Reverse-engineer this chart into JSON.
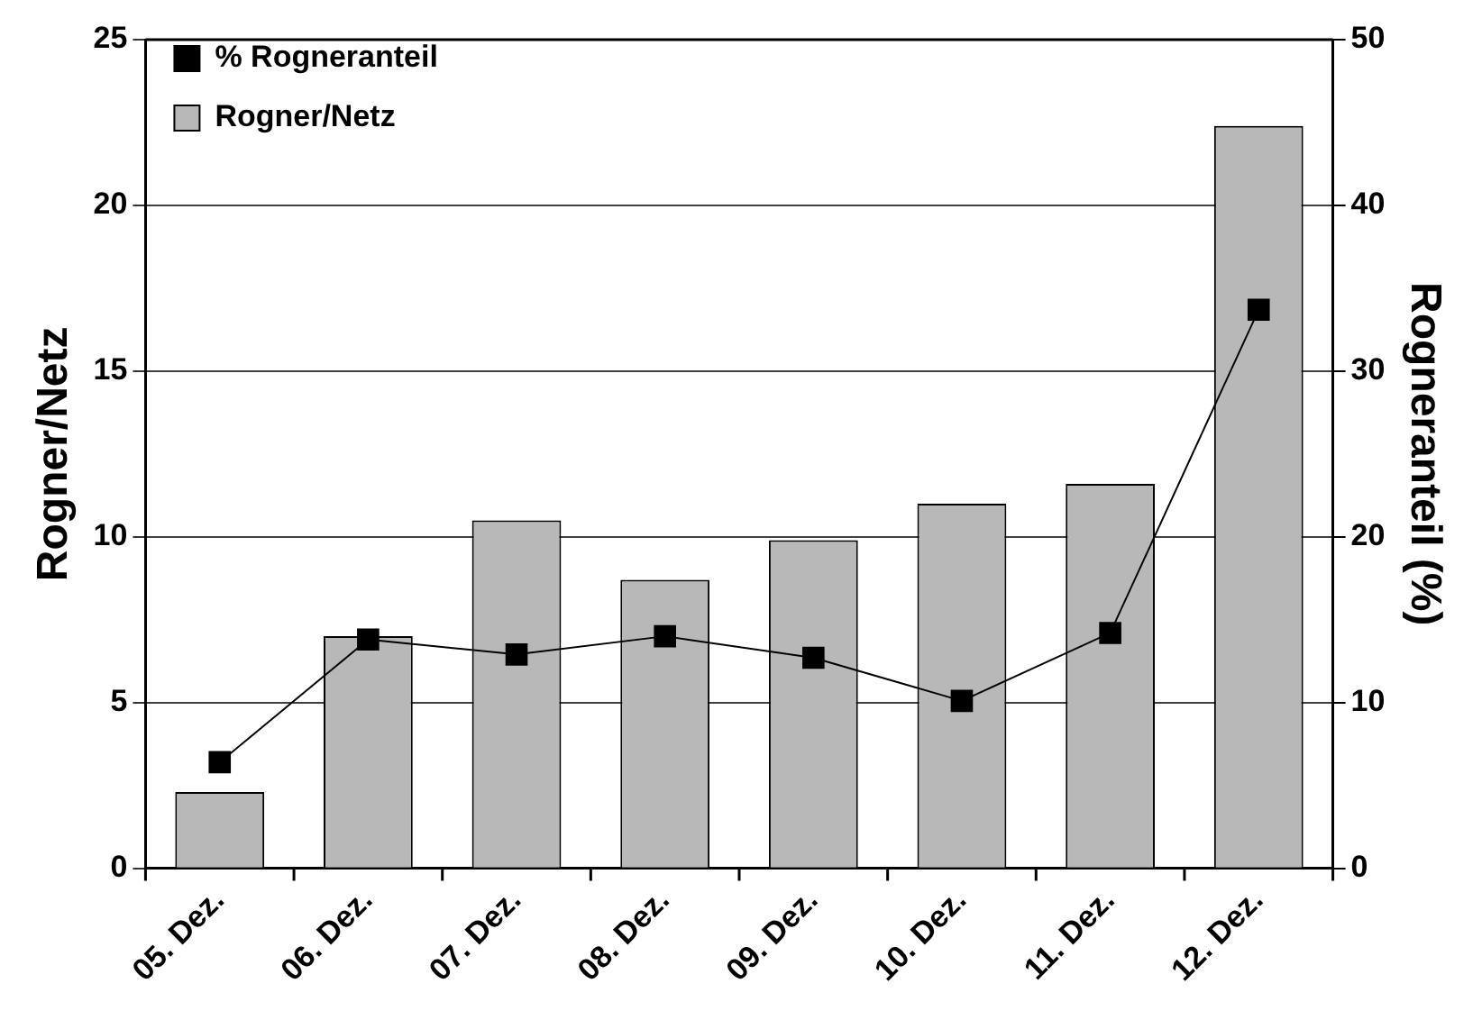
{
  "chart_data": {
    "type": "bar",
    "categories": [
      "05. Dez.",
      "06. Dez.",
      "07. Dez.",
      "08. Dez.",
      "09. Dez.",
      "10. Dez.",
      "11. Dez.",
      "12. Dez."
    ],
    "ylabel": "Rogner/Netz",
    "y2label": "Rogneranteil (%)",
    "series": [
      {
        "name": "Rogner/Netz",
        "color": "#b8b8b8",
        "values": [
          2.3,
          7.0,
          10.5,
          8.7,
          9.9,
          11.0,
          11.6,
          22.4
        ]
      },
      {
        "name": "% Rogneranteil",
        "type": "line",
        "axis": "y2",
        "color": "#000000",
        "values": [
          6.4,
          13.8,
          12.9,
          14.0,
          12.7,
          10.1,
          14.2,
          33.7
        ]
      }
    ],
    "ylim": [
      0,
      25
    ],
    "yticks": [
      0,
      5,
      10,
      15,
      20,
      25
    ],
    "y2lim": [
      0,
      50
    ],
    "y2ticks": [
      0,
      10,
      20,
      30,
      40,
      50
    ],
    "grid": "y",
    "legend": "top left",
    "marker": "square",
    "line_style": "solid"
  }
}
